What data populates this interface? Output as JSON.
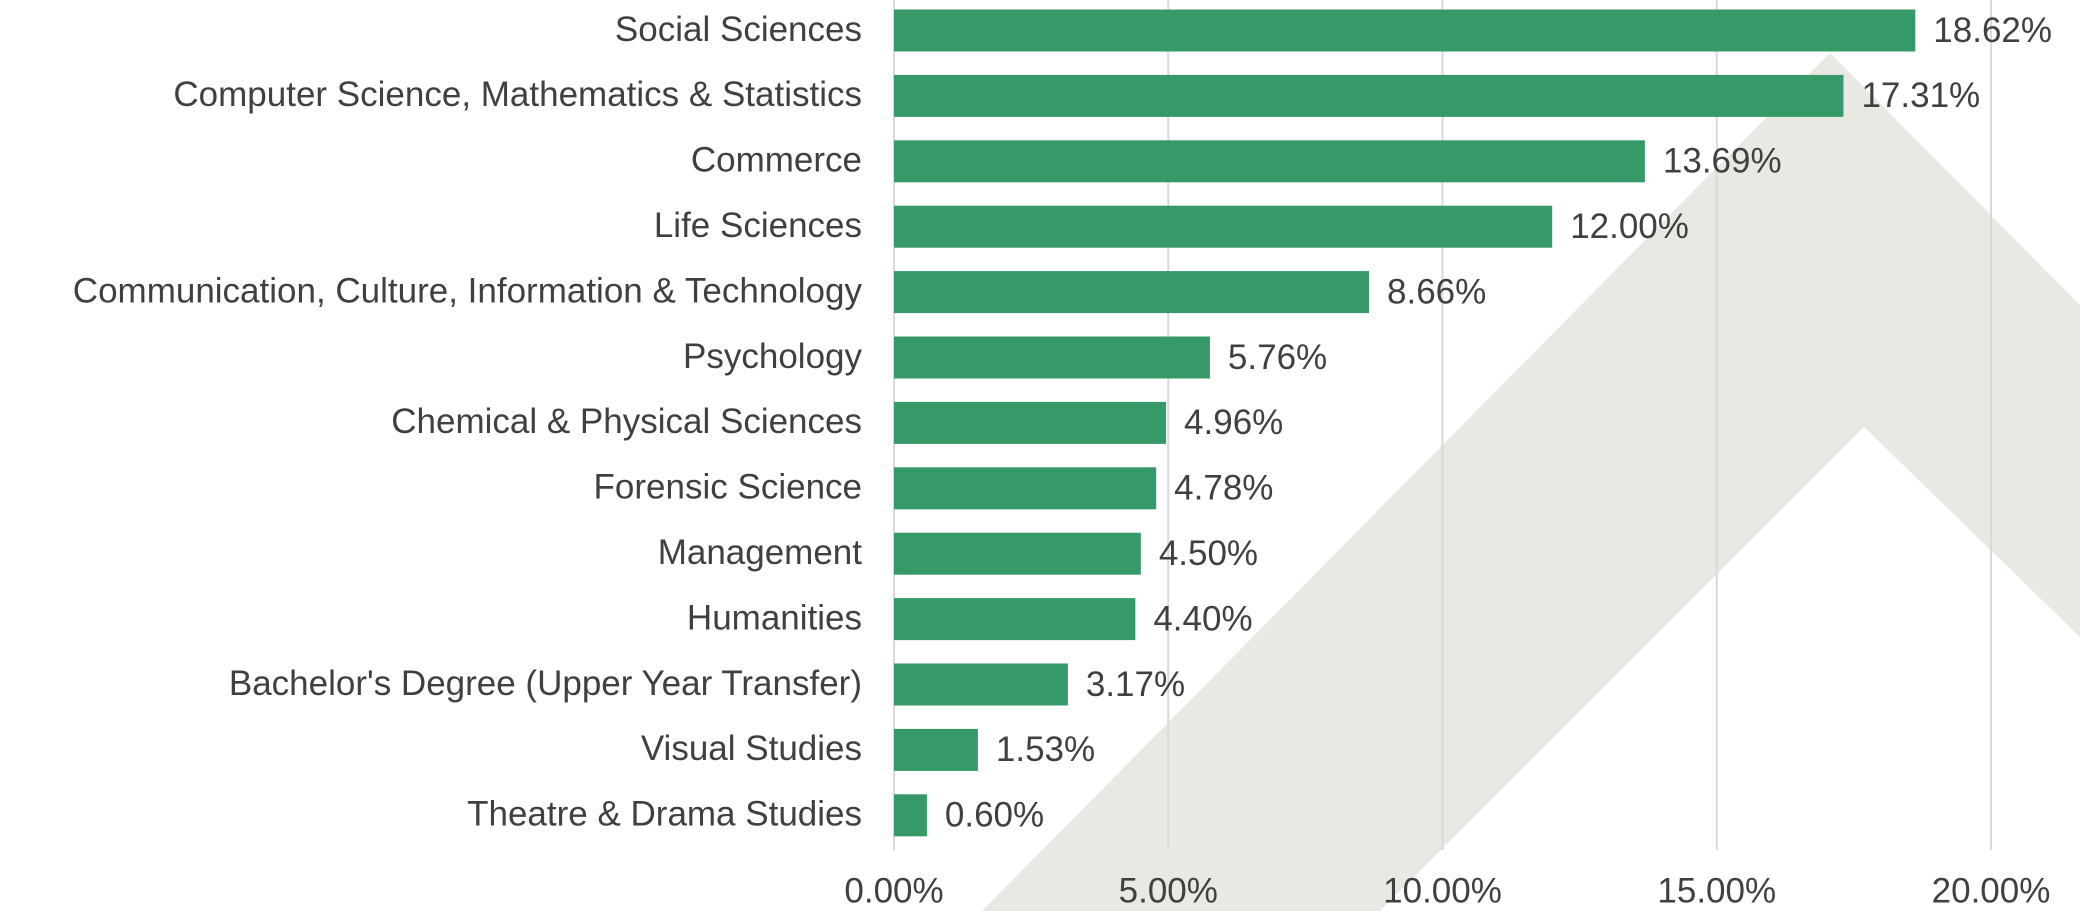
{
  "chart_data": {
    "type": "bar",
    "orientation": "horizontal",
    "categories": [
      "Social Sciences",
      "Computer Science, Mathematics & Statistics",
      "Commerce",
      "Life Sciences",
      "Communication, Culture, Information & Technology",
      "Psychology",
      "Chemical & Physical Sciences",
      "Forensic Science",
      "Management",
      "Humanities",
      "Bachelor's Degree (Upper Year Transfer)",
      "Visual Studies",
      "Theatre & Drama Studies"
    ],
    "values": [
      18.62,
      17.31,
      13.69,
      12.0,
      8.66,
      5.76,
      4.96,
      4.78,
      4.5,
      4.4,
      3.17,
      1.53,
      0.6
    ],
    "value_labels": [
      "18.62%",
      "17.31%",
      "13.69%",
      "12.00%",
      "8.66%",
      "5.76%",
      "4.96%",
      "4.78%",
      "4.50%",
      "4.40%",
      "3.17%",
      "1.53%",
      "0.60%"
    ],
    "color": "#359a68",
    "xlim": [
      0,
      20
    ],
    "xticks": [
      {
        "value": 0,
        "label": "0.00%"
      },
      {
        "value": 5,
        "label": "5.00%"
      },
      {
        "value": 10,
        "label": "10.00%"
      },
      {
        "value": 15,
        "label": "15.00%"
      },
      {
        "value": 20,
        "label": "20.00%"
      }
    ],
    "grid": true
  }
}
